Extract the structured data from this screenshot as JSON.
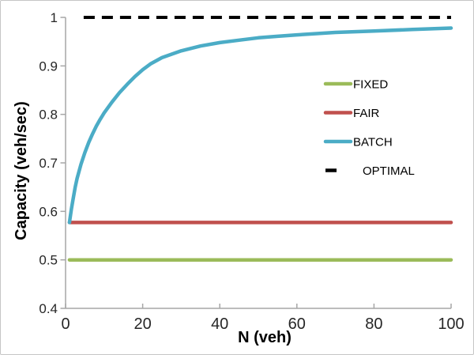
{
  "frame": {
    "background": "#FFFFFF",
    "border_color": "#C6C6C6"
  },
  "chart_data": {
    "type": "line",
    "title": "",
    "xlabel": "N (veh)",
    "ylabel": "Capacity (veh/sec)",
    "xlim": [
      0,
      100
    ],
    "ylim": [
      0.4,
      1.0
    ],
    "xticks": [
      0,
      20,
      40,
      60,
      80,
      100
    ],
    "xtick_labels": [
      "0",
      "20",
      "40",
      "60",
      "80",
      "100"
    ],
    "yticks": [
      1,
      0.9,
      0.8,
      0.7,
      0.6,
      0.5,
      0.4
    ],
    "ytick_labels": [
      "1",
      "0.9",
      "0.8",
      "0.7",
      "0.6",
      "0.5",
      "0.4"
    ],
    "grid": false,
    "legend_position": "center-right",
    "legend_entries": [
      "FIXED",
      "FAIR",
      "BATCH",
      "OPTIMAL"
    ],
    "axis_color": "#A6A6A6",
    "tick_label_color": "#262626",
    "series": [
      {
        "name": "FIXED",
        "color": "#9BBB59",
        "style": "solid",
        "x": [
          1,
          100
        ],
        "y": [
          0.5,
          0.5
        ]
      },
      {
        "name": "FAIR",
        "color": "#C0504D",
        "style": "solid",
        "x": [
          1,
          100
        ],
        "y": [
          0.577,
          0.577
        ]
      },
      {
        "name": "BATCH",
        "color": "#4BACC6",
        "style": "solid",
        "x": [
          1,
          1.5,
          2,
          2.5,
          3,
          4,
          5,
          6,
          7,
          8,
          9,
          10,
          12,
          14,
          16,
          18,
          20,
          22,
          25,
          30,
          35,
          40,
          45,
          50,
          55,
          60,
          70,
          80,
          90,
          100
        ],
        "y": [
          0.577,
          0.604,
          0.628,
          0.65,
          0.668,
          0.697,
          0.721,
          0.742,
          0.76,
          0.776,
          0.79,
          0.803,
          0.825,
          0.845,
          0.862,
          0.878,
          0.892,
          0.904,
          0.917,
          0.931,
          0.941,
          0.948,
          0.953,
          0.958,
          0.961,
          0.964,
          0.969,
          0.972,
          0.975,
          0.978
        ]
      },
      {
        "name": "OPTIMAL",
        "color": "#000000",
        "style": "dashed",
        "x": [
          4.7,
          100
        ],
        "y": [
          1.0,
          1.0
        ]
      }
    ]
  }
}
